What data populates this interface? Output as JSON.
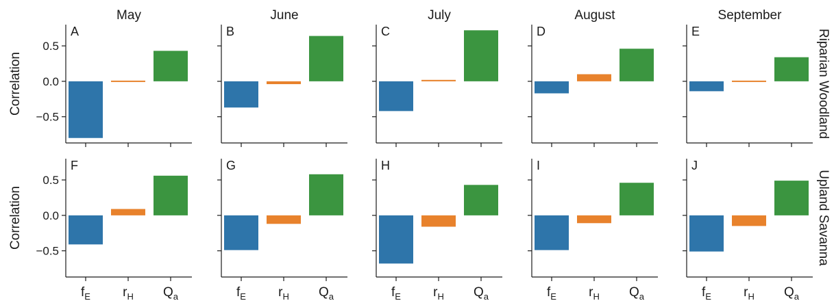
{
  "chart_data": {
    "type": "bar",
    "columns": [
      "May",
      "June",
      "July",
      "August",
      "September"
    ],
    "rows": [
      "Riparian Woodland",
      "Upland Savanna"
    ],
    "ylabel": "Correlation",
    "yticks": [
      "0.5",
      "0.0",
      "−0.5"
    ],
    "ytick_values": [
      0.5,
      0.0,
      -0.5
    ],
    "ylim": [
      -0.87,
      0.8
    ],
    "categories": [
      {
        "base": "f",
        "sub": "E"
      },
      {
        "base": "r",
        "sub": "H"
      },
      {
        "base": "Q",
        "sub": "a"
      }
    ],
    "colors": [
      "#2e75aa",
      "#e8822c",
      "#3b9540"
    ],
    "panels": [
      {
        "label": "A",
        "row": 0,
        "col": 0,
        "values": [
          -0.8,
          0.0,
          0.43
        ]
      },
      {
        "label": "B",
        "row": 0,
        "col": 1,
        "values": [
          -0.37,
          -0.04,
          0.64
        ]
      },
      {
        "label": "C",
        "row": 0,
        "col": 2,
        "values": [
          -0.42,
          0.02,
          0.72
        ]
      },
      {
        "label": "D",
        "row": 0,
        "col": 3,
        "values": [
          -0.17,
          0.1,
          0.46
        ]
      },
      {
        "label": "E",
        "row": 0,
        "col": 4,
        "values": [
          -0.14,
          0.0,
          0.34
        ]
      },
      {
        "label": "F",
        "row": 1,
        "col": 0,
        "values": [
          -0.41,
          0.09,
          0.56
        ]
      },
      {
        "label": "G",
        "row": 1,
        "col": 1,
        "values": [
          -0.49,
          -0.12,
          0.58
        ]
      },
      {
        "label": "H",
        "row": 1,
        "col": 2,
        "values": [
          -0.68,
          -0.16,
          0.43
        ]
      },
      {
        "label": "I",
        "row": 1,
        "col": 3,
        "values": [
          -0.49,
          -0.11,
          0.46
        ]
      },
      {
        "label": "J",
        "row": 1,
        "col": 4,
        "values": [
          -0.51,
          -0.15,
          0.49
        ]
      }
    ]
  }
}
